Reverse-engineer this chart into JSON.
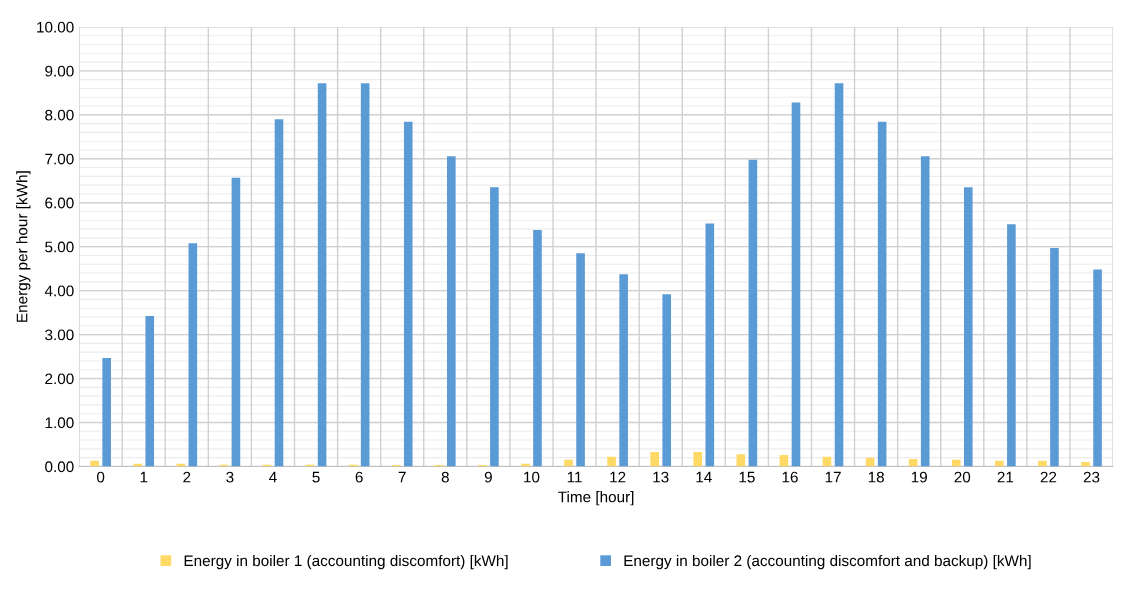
{
  "chart_data": {
    "type": "bar",
    "xlabel": "Time [hour]",
    "ylabel": "Energy per hour [kWh]",
    "categories": [
      "0",
      "1",
      "2",
      "3",
      "4",
      "5",
      "6",
      "7",
      "8",
      "9",
      "10",
      "11",
      "12",
      "13",
      "14",
      "15",
      "16",
      "17",
      "18",
      "19",
      "20",
      "21",
      "22",
      "23"
    ],
    "series": [
      {
        "name": "Energy in boiler 1 (accounting discomfort) [kWh]",
        "color": "#ffd966",
        "values": [
          0.13,
          0.06,
          0.06,
          0.04,
          0.04,
          0.04,
          0.04,
          0.03,
          0.03,
          0.03,
          0.06,
          0.15,
          0.22,
          0.33,
          0.33,
          0.28,
          0.26,
          0.22,
          0.2,
          0.17,
          0.15,
          0.13,
          0.13,
          0.1
        ]
      },
      {
        "name": "Energy in boiler 2 (accounting discomfort and backup) [kWh]",
        "color": "#5b9bd5",
        "values": [
          2.47,
          3.42,
          5.08,
          6.57,
          7.9,
          8.72,
          8.72,
          7.84,
          7.06,
          6.35,
          5.38,
          4.85,
          4.37,
          3.92,
          5.53,
          6.98,
          8.28,
          8.72,
          7.84,
          7.06,
          6.35,
          5.51,
          4.97,
          4.48
        ]
      }
    ],
    "ylim": [
      0,
      10
    ],
    "yticks": [
      {
        "value": 0,
        "label": "0.00"
      },
      {
        "value": 1,
        "label": "1.00"
      },
      {
        "value": 2,
        "label": "2.00"
      },
      {
        "value": 3,
        "label": "3.00"
      },
      {
        "value": 4,
        "label": "4.00"
      },
      {
        "value": 5,
        "label": "5.00"
      },
      {
        "value": 6,
        "label": "6.00"
      },
      {
        "value": 7,
        "label": "7.00"
      },
      {
        "value": 8,
        "label": "8.00"
      },
      {
        "value": 9,
        "label": "9.00"
      },
      {
        "value": 10,
        "label": "10.00"
      }
    ],
    "grid": true,
    "legend": "bottom"
  }
}
